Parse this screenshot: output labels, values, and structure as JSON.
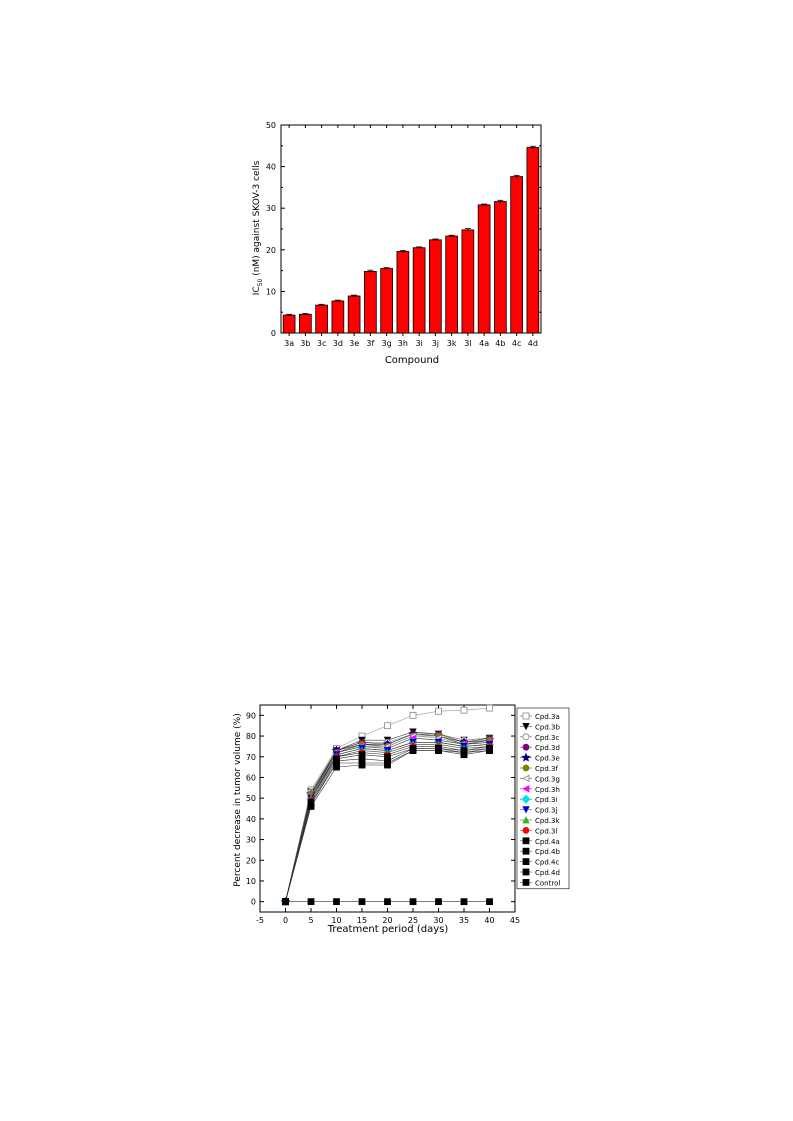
{
  "chart_data": [
    {
      "type": "bar",
      "title": "",
      "xlabel": "Compound",
      "ylabel": "IC50 (nM) against SKOV-3 cells",
      "ylabel_main": "IC",
      "ylabel_sub": "50",
      "ylabel_rest": " (nM) against SKOV-3 cells",
      "ylim": [
        0,
        50
      ],
      "yticks": [
        "0",
        "10",
        "20",
        "30",
        "40",
        "50"
      ],
      "categories": [
        "3a",
        "3b",
        "3c",
        "3d",
        "3e",
        "3f",
        "3g",
        "3h",
        "3i",
        "3j",
        "3k",
        "3l",
        "4a",
        "4b",
        "4c",
        "4d"
      ],
      "values": [
        4.3,
        4.5,
        6.7,
        7.7,
        8.9,
        14.8,
        15.5,
        19.6,
        20.5,
        22.4,
        23.3,
        24.8,
        30.8,
        31.6,
        37.6,
        44.6
      ],
      "errors": [
        0.2,
        0.2,
        0.2,
        0.2,
        0.2,
        0.3,
        0.2,
        0.2,
        0.2,
        0.2,
        0.2,
        0.3,
        0.2,
        0.3,
        0.3,
        0.3
      ],
      "bar_color": "#ff0000",
      "grid": false
    },
    {
      "type": "line",
      "title": "",
      "xlabel": "Treatment period (days)",
      "ylabel": "Percent decrease in tumor volume (%)",
      "xlim": [
        -5,
        45
      ],
      "ylim": [
        -5,
        95
      ],
      "xticks": [
        "-5",
        "0",
        "5",
        "10",
        "15",
        "20",
        "25",
        "30",
        "35",
        "40",
        "45"
      ],
      "yticks": [
        "0",
        "10",
        "20",
        "30",
        "40",
        "50",
        "60",
        "70",
        "80",
        "90"
      ],
      "x": [
        0,
        5,
        10,
        15,
        20,
        25,
        30,
        35,
        40
      ],
      "legend_position": "right-outside",
      "grid": false,
      "series": [
        {
          "name": "Cpd.3a",
          "marker": "square-open",
          "color": "#888888",
          "values": [
            0,
            54,
            74,
            80,
            85,
            90,
            92,
            92.5,
            93.5
          ]
        },
        {
          "name": "Cpd.3b",
          "marker": "triangle-down",
          "color": "#000000",
          "values": [
            0,
            53,
            73,
            78,
            78,
            82,
            81,
            78,
            79
          ]
        },
        {
          "name": "Cpd.3c",
          "marker": "circle-open",
          "color": "#888888",
          "values": [
            0,
            53,
            73,
            77,
            77,
            81,
            81,
            78,
            79
          ]
        },
        {
          "name": "Cpd.3d",
          "marker": "circle",
          "color": "#800080",
          "values": [
            0,
            52,
            73,
            77,
            76,
            81,
            81,
            77,
            79
          ]
        },
        {
          "name": "Cpd.3e",
          "marker": "star",
          "color": "#000080",
          "values": [
            0,
            52,
            73,
            76,
            76,
            81,
            80,
            77,
            78
          ]
        },
        {
          "name": "Cpd.3f",
          "marker": "circle",
          "color": "#808000",
          "values": [
            0,
            52,
            72,
            76,
            75,
            80,
            80,
            76,
            78
          ]
        },
        {
          "name": "Cpd.3g",
          "marker": "triangle-left-open",
          "color": "#888888",
          "values": [
            0,
            51,
            72,
            75,
            75,
            80,
            79,
            76,
            77
          ]
        },
        {
          "name": "Cpd.3h",
          "marker": "triangle-left",
          "color": "#ff00ff",
          "values": [
            0,
            51,
            72,
            75,
            74,
            79,
            78,
            76,
            77
          ]
        },
        {
          "name": "Cpd.3i",
          "marker": "diamond",
          "color": "#00e5e5",
          "values": [
            0,
            50,
            71,
            74,
            73,
            77,
            77,
            75,
            76
          ]
        },
        {
          "name": "Cpd.3j",
          "marker": "triangle-down",
          "color": "#0000cc",
          "values": [
            0,
            50,
            71,
            74,
            73,
            77,
            77,
            75,
            76
          ]
        },
        {
          "name": "Cpd.3k",
          "marker": "triangle-up",
          "color": "#22bb22",
          "values": [
            0,
            50,
            70,
            73,
            72,
            76,
            76,
            74,
            75
          ]
        },
        {
          "name": "Cpd.3l",
          "marker": "circle",
          "color": "#ff0000",
          "values": [
            0,
            49,
            70,
            72,
            71,
            75,
            75,
            73,
            75
          ]
        },
        {
          "name": "Cpd.4a",
          "marker": "square",
          "color": "#000000",
          "values": [
            0,
            48,
            69,
            71,
            70,
            74,
            74,
            73,
            74
          ]
        },
        {
          "name": "Cpd.4b",
          "marker": "square",
          "color": "#000000",
          "values": [
            0,
            47,
            68,
            69,
            68,
            74,
            74,
            72,
            74
          ]
        },
        {
          "name": "Cpd.4c",
          "marker": "square",
          "color": "#000000",
          "values": [
            0,
            47,
            67,
            67,
            67,
            73,
            73,
            72,
            73
          ]
        },
        {
          "name": "Cpd.4d",
          "marker": "square",
          "color": "#000000",
          "values": [
            0,
            46,
            65,
            66,
            66,
            73,
            73,
            71,
            73
          ]
        },
        {
          "name": "Control",
          "marker": "square",
          "color": "#000000",
          "values": [
            0,
            0,
            0,
            0,
            0,
            0,
            0,
            0,
            0
          ]
        }
      ]
    }
  ]
}
